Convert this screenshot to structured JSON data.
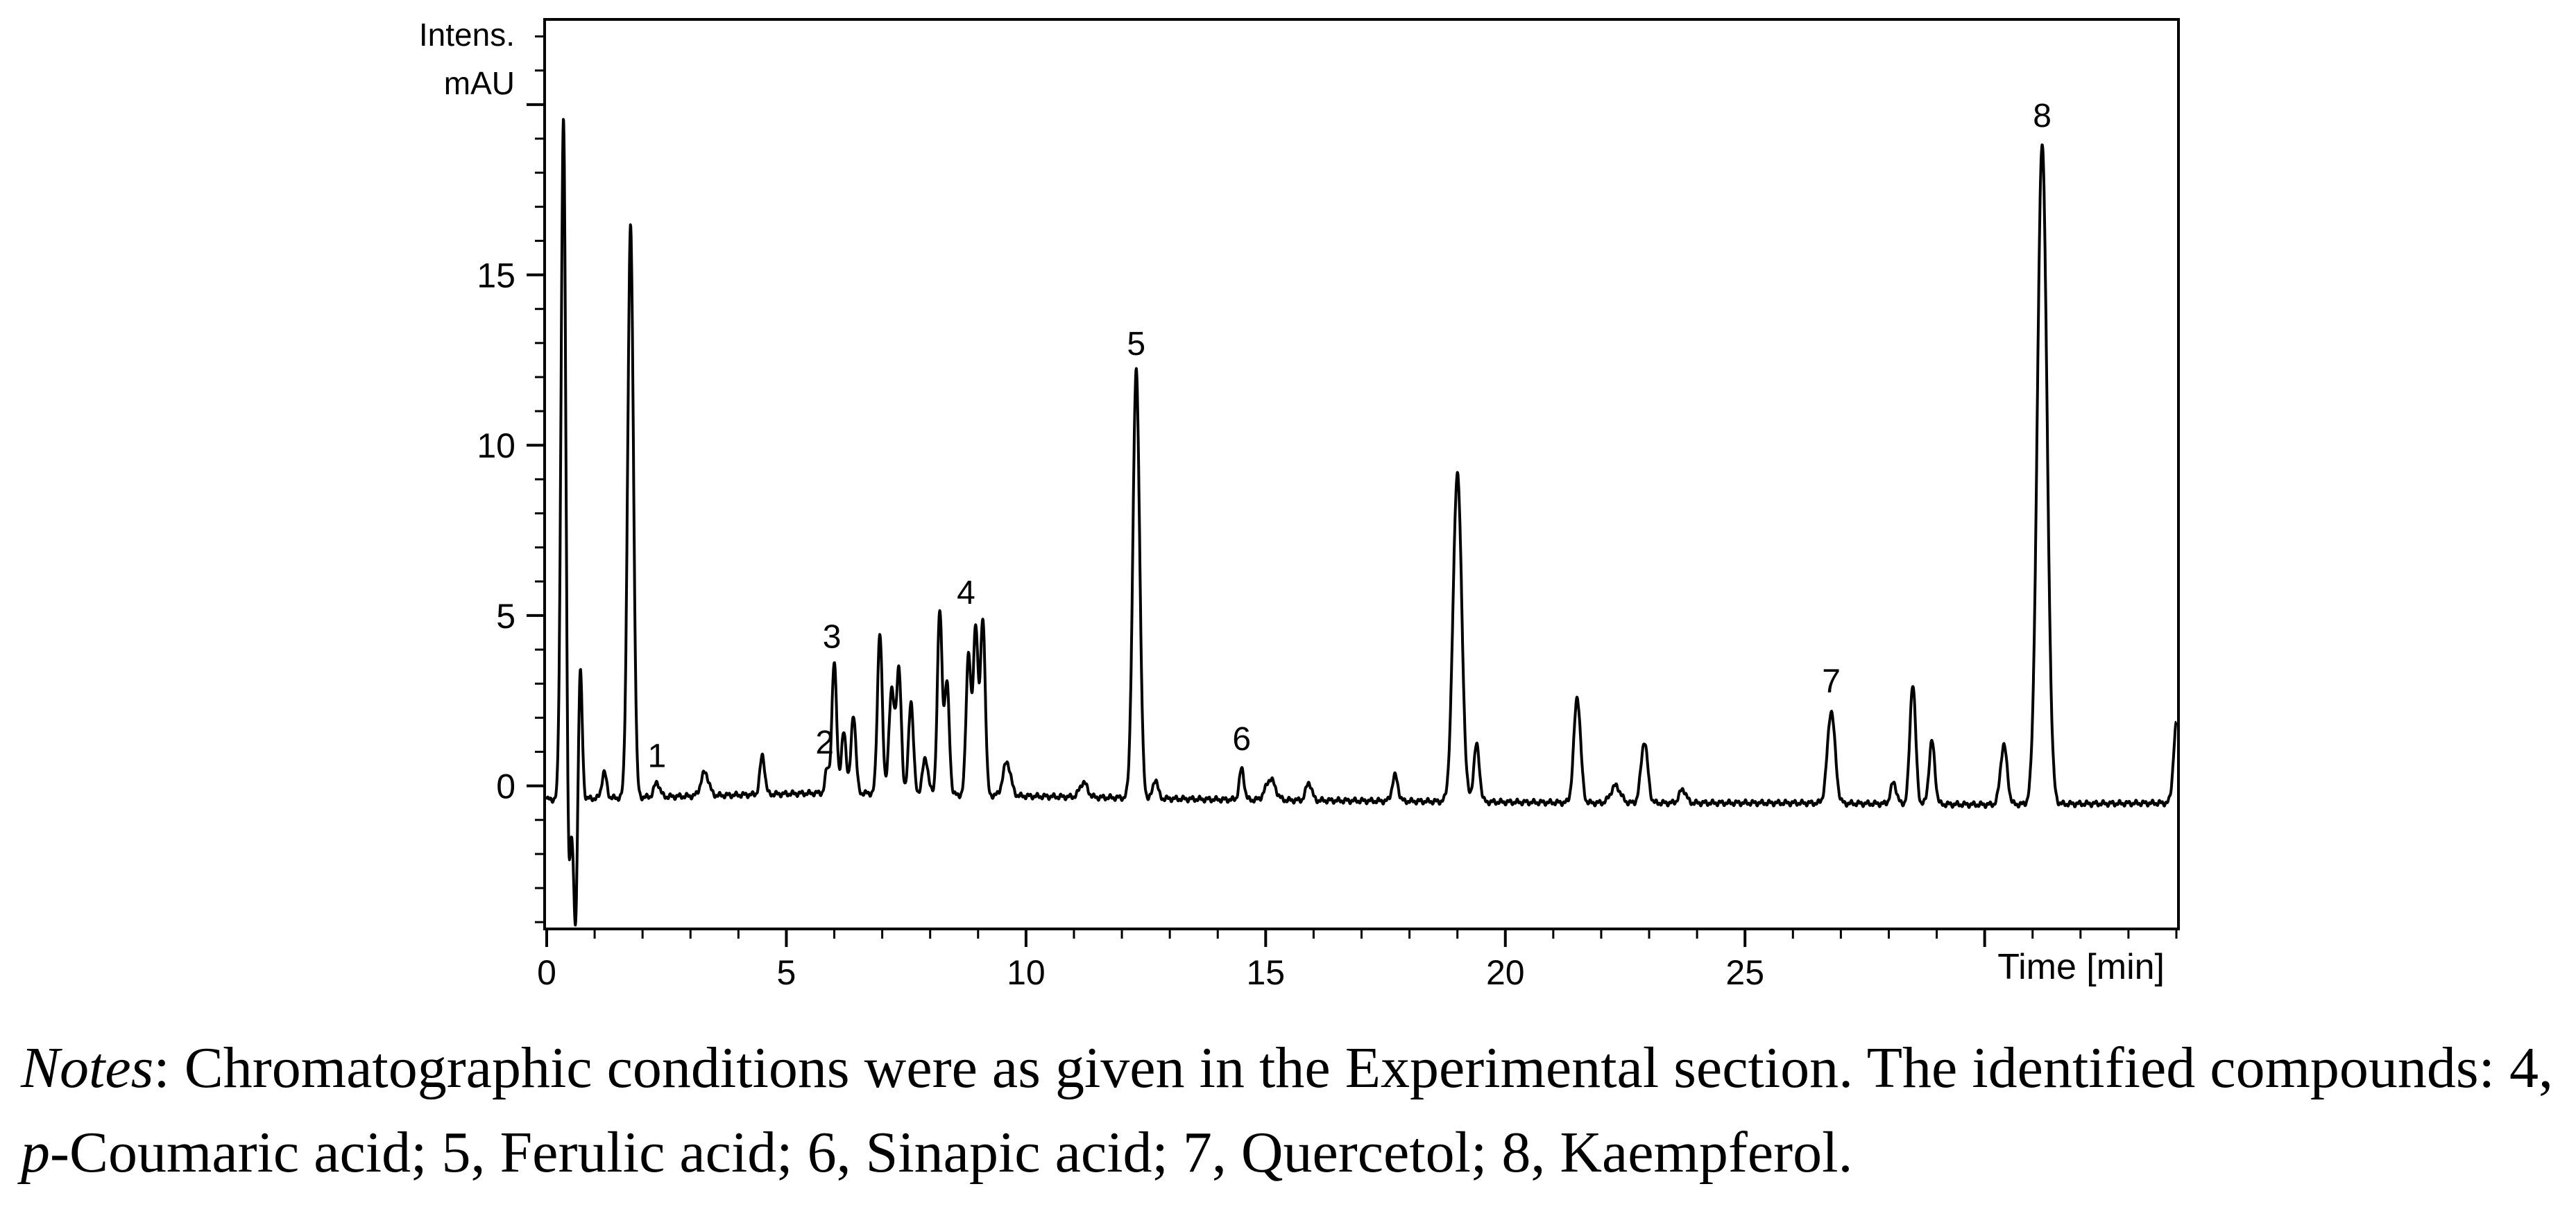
{
  "chart_data": {
    "type": "line",
    "title": "",
    "ylabel_line1": "Intens.",
    "ylabel_line2": "mAU",
    "xlabel": "Time [min]",
    "xlim": [
      0,
      34
    ],
    "ylim": [
      -4.2,
      22.5
    ],
    "x_ticks": [
      0,
      5,
      10,
      15,
      20,
      25
    ],
    "x_tick_labels": [
      "0",
      "5",
      "10",
      "15",
      "20",
      "25"
    ],
    "y_ticks": [
      0,
      5,
      10,
      15
    ],
    "y_tick_labels": [
      "0",
      "5",
      "10",
      "15"
    ],
    "series": [
      {
        "name": "chromatogram",
        "baseline": [
          [
            0,
            -0.4
          ],
          [
            3,
            -0.3
          ],
          [
            6,
            -0.2
          ],
          [
            10,
            -0.3
          ],
          [
            14,
            -0.4
          ],
          [
            18,
            -0.45
          ],
          [
            22,
            -0.5
          ],
          [
            26,
            -0.5
          ],
          [
            30,
            -0.55
          ],
          [
            34,
            -0.5
          ]
        ],
        "peaks": [
          [
            0.35,
            19.7,
            0.05
          ],
          [
            0.45,
            -3.5,
            0.04
          ],
          [
            0.6,
            -4.2,
            0.04
          ],
          [
            0.7,
            3.5,
            0.04
          ],
          [
            1.2,
            0.4,
            0.05
          ],
          [
            1.75,
            16.4,
            0.06
          ],
          [
            2.3,
            0.1,
            0.06
          ],
          [
            3.3,
            0.4,
            0.08
          ],
          [
            4.5,
            0.9,
            0.05
          ],
          [
            5.85,
            0.5,
            0.04
          ],
          [
            6.0,
            3.6,
            0.05
          ],
          [
            6.2,
            1.6,
            0.05
          ],
          [
            6.4,
            2.1,
            0.05
          ],
          [
            6.95,
            4.5,
            0.05
          ],
          [
            7.2,
            2.8,
            0.06
          ],
          [
            7.35,
            3.3,
            0.05
          ],
          [
            7.6,
            2.5,
            0.05
          ],
          [
            7.9,
            0.8,
            0.06
          ],
          [
            8.2,
            5.1,
            0.05
          ],
          [
            8.35,
            3.0,
            0.05
          ],
          [
            8.8,
            3.9,
            0.05
          ],
          [
            8.95,
            4.7,
            0.05
          ],
          [
            9.1,
            4.9,
            0.05
          ],
          [
            9.6,
            0.7,
            0.08
          ],
          [
            11.2,
            0.1,
            0.08
          ],
          [
            12.3,
            12.2,
            0.07
          ],
          [
            12.7,
            0.2,
            0.05
          ],
          [
            14.5,
            0.5,
            0.05
          ],
          [
            15.1,
            0.2,
            0.1
          ],
          [
            15.9,
            0.1,
            0.06
          ],
          [
            17.7,
            0.3,
            0.06
          ],
          [
            19.0,
            9.2,
            0.09
          ],
          [
            19.4,
            1.2,
            0.06
          ],
          [
            21.5,
            2.6,
            0.07
          ],
          [
            22.3,
            0.0,
            0.1
          ],
          [
            22.9,
            1.3,
            0.07
          ],
          [
            23.7,
            -0.1,
            0.07
          ],
          [
            26.8,
            2.2,
            0.08
          ],
          [
            28.1,
            0.1,
            0.06
          ],
          [
            28.5,
            3.0,
            0.06
          ],
          [
            28.9,
            1.3,
            0.06
          ],
          [
            30.4,
            1.2,
            0.07
          ],
          [
            31.2,
            18.9,
            0.1
          ],
          [
            34.0,
            1.8,
            0.06
          ]
        ]
      }
    ],
    "peak_labels": [
      {
        "label": "1",
        "x": 2.3,
        "y": 0.1
      },
      {
        "label": "2",
        "x": 5.8,
        "y": 0.5
      },
      {
        "label": "3",
        "x": 5.95,
        "y": 3.6
      },
      {
        "label": "4",
        "x": 8.75,
        "y": 4.9
      },
      {
        "label": "5",
        "x": 12.3,
        "y": 12.2
      },
      {
        "label": "6",
        "x": 14.5,
        "y": 0.6
      },
      {
        "label": "7",
        "x": 26.8,
        "y": 2.3
      },
      {
        "label": "8",
        "x": 31.2,
        "y": 18.9
      }
    ]
  },
  "notes": {
    "label": "Notes",
    "text_before": ": Chromatographic conditions were as given in the Experimental section. The identified compounds: 4, ",
    "p_italic": "p",
    "text_after": "-Coumaric acid; 5, Ferulic acid; 6, Sinapic acid; 7, Quercetol; 8, Kaempferol."
  }
}
